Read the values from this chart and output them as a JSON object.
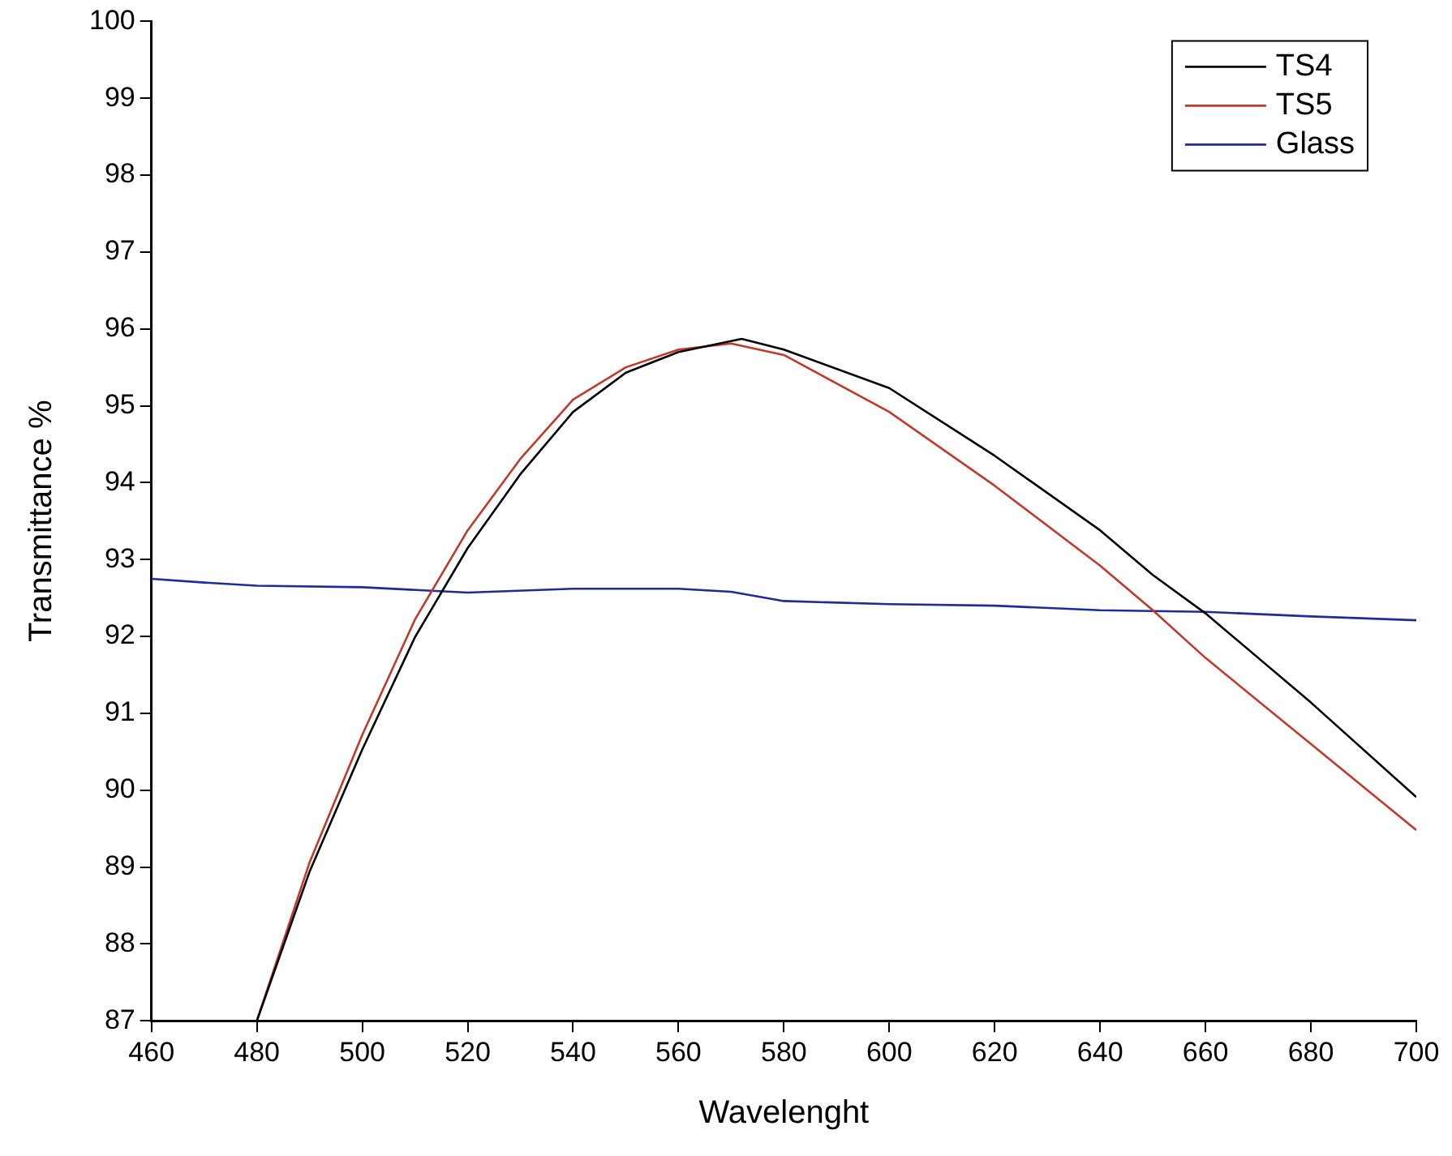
{
  "chart_data": {
    "type": "line",
    "xlabel": "Wavelenght",
    "ylabel": "Transmittance %",
    "xlim": [
      460,
      700
    ],
    "xticks": [
      460,
      480,
      500,
      520,
      540,
      560,
      580,
      600,
      620,
      640,
      660,
      680,
      700
    ],
    "ylim": [
      87,
      100
    ],
    "yticks": [
      87,
      88,
      89,
      90,
      91,
      92,
      93,
      94,
      95,
      96,
      97,
      98,
      99,
      100
    ],
    "grid": false,
    "legend": "top right",
    "marker": "none",
    "line_style": "solid",
    "series": [
      {
        "name": "TS4",
        "color": "#000000",
        "x": [
          480,
          490,
          500,
          510,
          520,
          530,
          540,
          550,
          560,
          572,
          580,
          600,
          620,
          640,
          650,
          660,
          680,
          700
        ],
        "values": [
          87,
          88.94,
          90.53,
          91.99,
          93.15,
          94.11,
          94.92,
          95.43,
          95.7,
          95.87,
          95.73,
          95.23,
          94.35,
          93.38,
          92.8,
          92.3,
          91.14,
          89.91
        ]
      },
      {
        "name": "TS5",
        "color": "#c0392b",
        "x": [
          480,
          490,
          500,
          510,
          520,
          530,
          540,
          550,
          560,
          570,
          580,
          600,
          620,
          640,
          650,
          660,
          680,
          700
        ],
        "values": [
          87,
          89.06,
          90.72,
          92.22,
          93.38,
          94.31,
          95.08,
          95.5,
          95.73,
          95.81,
          95.66,
          94.92,
          93.96,
          92.92,
          92.34,
          91.72,
          90.6,
          89.48
        ]
      },
      {
        "name": "Glass",
        "color": "#1f2a9e",
        "x": [
          460,
          470,
          480,
          500,
          520,
          540,
          560,
          570,
          580,
          600,
          620,
          640,
          660,
          680,
          700
        ],
        "values": [
          92.75,
          92.7,
          92.66,
          92.64,
          92.57,
          92.62,
          92.62,
          92.58,
          92.46,
          92.42,
          92.4,
          92.34,
          92.32,
          92.26,
          92.21
        ]
      }
    ]
  }
}
